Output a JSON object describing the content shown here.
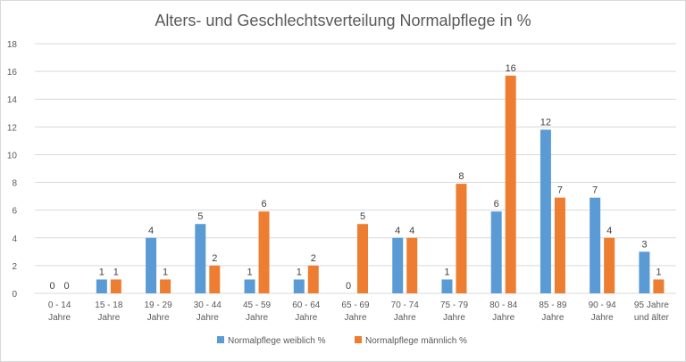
{
  "chart_data": {
    "type": "bar",
    "title": "Alters- und Geschlechtsverteilung Normalpflege in %",
    "categories": [
      [
        "0 - 14",
        "Jahre"
      ],
      [
        "15 - 18",
        "Jahre"
      ],
      [
        "19 - 29",
        "Jahre"
      ],
      [
        "30 - 44",
        "Jahre"
      ],
      [
        "45 - 59",
        "Jahre"
      ],
      [
        "60 - 64",
        "Jahre"
      ],
      [
        "65 - 69",
        "Jahre"
      ],
      [
        "70 - 74",
        "Jahre"
      ],
      [
        "75 - 79",
        "Jahre"
      ],
      [
        "80 - 84",
        "Jahre"
      ],
      [
        "85 - 89",
        "Jahre"
      ],
      [
        "90 - 94",
        "Jahre"
      ],
      [
        "95 Jahre",
        "und älter"
      ]
    ],
    "series": [
      {
        "name": "Normalpflege weiblich %",
        "color": "#5b9bd5",
        "values": [
          0,
          1,
          4,
          5,
          1,
          1,
          0,
          4,
          1,
          5.9,
          11.8,
          6.9,
          3
        ],
        "labels": [
          "0",
          "1",
          "4",
          "5",
          "1",
          "1",
          "0",
          "4",
          "1",
          "6",
          "12",
          "7",
          "3"
        ]
      },
      {
        "name": "Normalpflege männlich %",
        "color": "#ed7d31",
        "values": [
          0,
          1,
          1,
          2,
          5.9,
          2,
          5,
          4,
          7.9,
          15.7,
          6.9,
          4,
          1
        ],
        "labels": [
          "0",
          "1",
          "1",
          "2",
          "6",
          "2",
          "5",
          "4",
          "8",
          "16",
          "7",
          "4",
          "1"
        ]
      }
    ],
    "ylim": [
      0,
      18
    ],
    "yticks": [
      0,
      2,
      4,
      6,
      8,
      10,
      12,
      14,
      16,
      18
    ],
    "grid": true,
    "legend_position": "bottom"
  }
}
